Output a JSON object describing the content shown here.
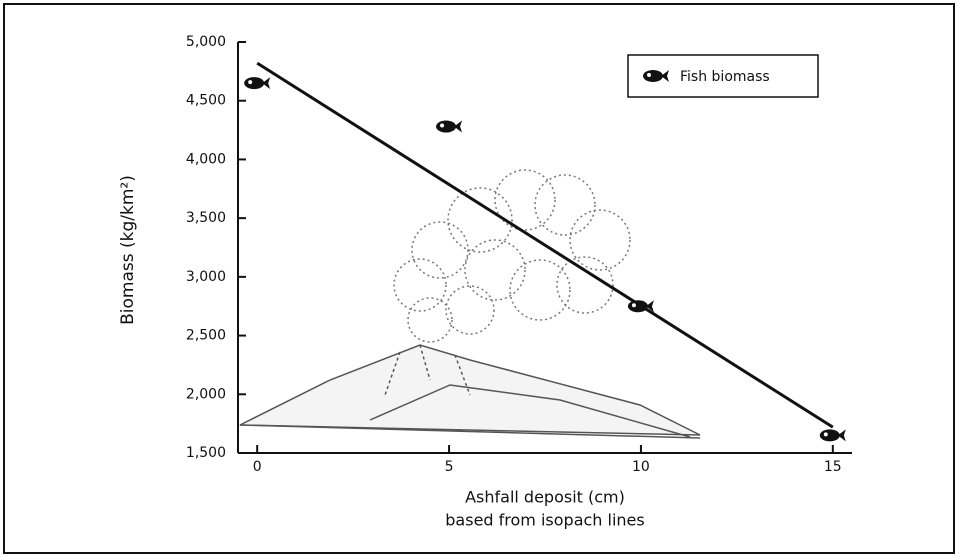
{
  "chart_data": {
    "type": "scatter",
    "x_label": [
      "Ashfall deposit (cm)",
      "based from isopach lines"
    ],
    "y_label": "Biomass (kg/km²)",
    "series": [
      {
        "name": "Fish biomass",
        "color": "#111111",
        "x": [
          0,
          5,
          10,
          15
        ],
        "values": [
          4650,
          4280,
          2750,
          1650
        ]
      }
    ],
    "fit": {
      "x": [
        0,
        15
      ],
      "values": [
        4820,
        1720
      ],
      "color": "#111111"
    },
    "xlim": [
      -0.5,
      15.5
    ],
    "xticks": [
      0,
      5,
      10,
      15
    ],
    "ylim": [
      1500,
      5000
    ],
    "yticks": [
      {
        "value": 1500,
        "label": "1,500"
      },
      {
        "value": 2000,
        "label": "2,000"
      },
      {
        "value": 2500,
        "label": "2,500"
      },
      {
        "value": 3000,
        "label": "3,000"
      },
      {
        "value": 3500,
        "label": "3,500"
      },
      {
        "value": 4000,
        "label": "4,000"
      },
      {
        "value": 4500,
        "label": "4,500"
      },
      {
        "value": 5000,
        "label": "5,000"
      }
    ],
    "legend": "upper right"
  }
}
